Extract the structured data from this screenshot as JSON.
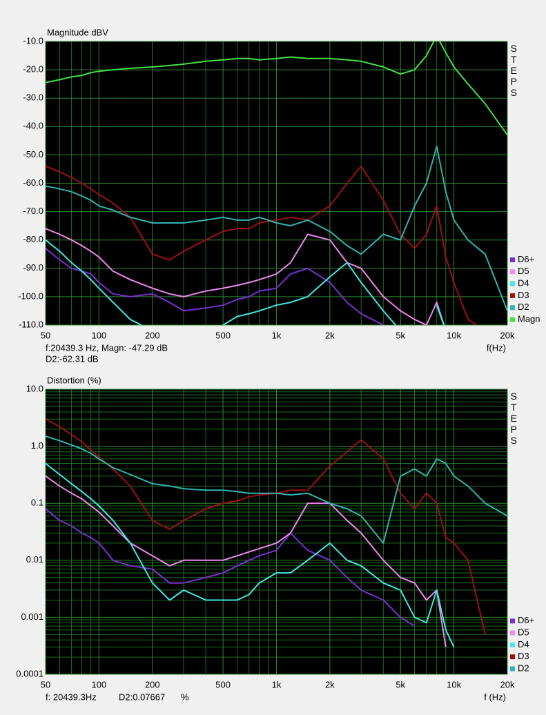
{
  "chart_data": [
    {
      "type": "line",
      "title": "Magnitude dBV",
      "side_label": "STEPS",
      "xlabel": "f(Hz)",
      "cursor": [
        "f:20439.3 Hz, Magn: -47.29 dB",
        "D2:-62.31 dB"
      ],
      "log_x": true,
      "log_y": false,
      "grid": true,
      "legend": "right",
      "xlim": [
        50,
        20000
      ],
      "xticks": [
        50,
        100,
        200,
        500,
        {
          "value": 1000,
          "label": "1k"
        },
        {
          "value": 2000,
          "label": "2k"
        },
        {
          "value": 5000,
          "label": "5k"
        },
        {
          "value": 10000,
          "label": "10k"
        },
        {
          "value": 20000,
          "label": "20k"
        }
      ],
      "xgrid": [
        60,
        70,
        80,
        90,
        300,
        400,
        600,
        700,
        800,
        900,
        3000,
        4000,
        6000,
        7000,
        8000,
        9000
      ],
      "ylim": [
        -110,
        -10
      ],
      "yticks": [
        {
          "value": -10,
          "label": "-10.0"
        },
        {
          "value": -20,
          "label": "-20.0"
        },
        {
          "value": -30,
          "label": "-30.0"
        },
        {
          "value": -40,
          "label": "-40.0"
        },
        {
          "value": -50,
          "label": "-50.0"
        },
        {
          "value": -60,
          "label": "-60.0"
        },
        {
          "value": -70,
          "label": "-70.0"
        },
        {
          "value": -80,
          "label": "-80.0"
        },
        {
          "value": -90,
          "label": "-90.0"
        },
        {
          "value": -100,
          "label": "-100.0"
        },
        {
          "value": -110,
          "label": "-110.0"
        }
      ],
      "x": [
        50,
        60,
        70,
        80,
        90,
        100,
        120,
        150,
        200,
        250,
        300,
        400,
        500,
        600,
        700,
        800,
        1000,
        1200,
        1500,
        2000,
        2500,
        3000,
        4000,
        5000,
        6000,
        7000,
        8000,
        9000,
        10000,
        12000,
        15000,
        20000
      ],
      "series": [
        {
          "name": "D6+",
          "color": "#7a2fd0",
          "values": [
            -83,
            -87,
            -90,
            -91,
            -92,
            -95,
            -99,
            -100,
            -99,
            -102,
            -105,
            -104,
            -103,
            -101,
            -100,
            -98,
            -97,
            -92,
            -90,
            -95,
            -102,
            -106,
            -110,
            -112,
            null,
            null,
            null,
            null,
            null,
            null,
            null,
            null
          ]
        },
        {
          "name": "D5",
          "color": "#f088f0",
          "values": [
            -76,
            -78,
            -80,
            -82,
            -84,
            -86,
            -91,
            -94,
            -97,
            -99,
            -100,
            -98,
            -97,
            -96,
            -95,
            -94,
            -92,
            -88,
            -78,
            -80,
            -88,
            -90,
            -100,
            -105,
            -108,
            -110,
            -102,
            -112,
            null,
            null,
            null,
            null
          ]
        },
        {
          "name": "D4",
          "color": "#40e8e8",
          "values": [
            -80,
            -84,
            -88,
            -91,
            -94,
            -97,
            -102,
            -108,
            -112,
            null,
            null,
            null,
            -110,
            -107,
            -106,
            -105,
            -103,
            -102,
            -100,
            -93,
            -88,
            -95,
            -105,
            -112,
            null,
            null,
            -103,
            -112,
            null,
            null,
            null,
            null
          ]
        },
        {
          "name": "D3",
          "color": "#a01010",
          "values": [
            -54,
            -56,
            -58,
            -60,
            -62,
            -64,
            -67,
            -72,
            -85,
            -87,
            -84,
            -80,
            -77,
            -76,
            -76,
            -74,
            -73,
            -72,
            -73,
            -68,
            -60,
            -54,
            -66,
            -78,
            -83,
            -78,
            -68,
            -86,
            -95,
            -108,
            -112,
            null
          ]
        },
        {
          "name": "D2",
          "color": "#30b4b4",
          "values": [
            -61,
            -62,
            -63,
            -64.5,
            -66,
            -68,
            -69.5,
            -72,
            -74,
            -74,
            -74,
            -73,
            -72,
            -73,
            -73,
            -72,
            -74,
            -75,
            -73,
            -77,
            -82,
            -85,
            -78,
            -80,
            -68,
            -60,
            -47,
            -63,
            -73,
            -80,
            -85,
            -105
          ]
        },
        {
          "name": "Magn",
          "color": "#44e044",
          "values": [
            -24.5,
            -23.5,
            -22.5,
            -22,
            -21,
            -20.5,
            -20,
            -19.5,
            -19,
            -18.5,
            -18,
            -17,
            -16.5,
            -16,
            -16,
            -16.5,
            -16,
            -15.5,
            -16,
            -16,
            -16.5,
            -17,
            -19,
            -21.5,
            -20,
            -15,
            -8,
            -14,
            -19,
            -25,
            -32,
            -43
          ]
        }
      ]
    },
    {
      "type": "line",
      "title": "Distortion (%)",
      "side_label": "STEPS",
      "xlabel": "f (Hz)",
      "cursor": [
        "f: 20439.3Hz",
        "D2:0.07667",
        "%"
      ],
      "log_x": true,
      "log_y": true,
      "grid": true,
      "legend": "right",
      "xlim": [
        50,
        20000
      ],
      "xticks": [
        50,
        100,
        200,
        500,
        {
          "value": 1000,
          "label": "1k"
        },
        {
          "value": 2000,
          "label": "2k"
        },
        {
          "value": 5000,
          "label": "5k"
        },
        {
          "value": 10000,
          "label": "10k"
        },
        {
          "value": 20000,
          "label": "20k"
        }
      ],
      "xgrid": [
        60,
        70,
        80,
        90,
        300,
        400,
        600,
        700,
        800,
        900,
        3000,
        4000,
        6000,
        7000,
        8000,
        9000
      ],
      "ylim": [
        0.0001,
        10
      ],
      "yticks": [
        {
          "value": 10,
          "label": "10.0"
        },
        {
          "value": 1,
          "label": "1.0"
        },
        0.1,
        0.01,
        0.001,
        0.0001
      ],
      "ygrid": [
        0.0002,
        0.0003,
        0.0004,
        0.0005,
        0.0006,
        0.0007,
        0.0008,
        0.0009,
        0.002,
        0.003,
        0.004,
        0.005,
        0.006,
        0.007,
        0.008,
        0.009,
        0.02,
        0.03,
        0.04,
        0.05,
        0.06,
        0.07,
        0.08,
        0.09,
        0.2,
        0.3,
        0.4,
        0.5,
        0.6,
        0.7,
        0.8,
        0.9,
        2,
        3,
        4,
        5,
        6,
        7,
        8,
        9
      ],
      "x": [
        50,
        60,
        70,
        80,
        90,
        100,
        120,
        150,
        200,
        250,
        300,
        400,
        500,
        600,
        700,
        800,
        1000,
        1200,
        1500,
        2000,
        2500,
        3000,
        4000,
        5000,
        6000,
        7000,
        8000,
        9000,
        10000,
        12000,
        15000,
        20000
      ],
      "series": [
        {
          "name": "D6+",
          "color": "#7a2fd0",
          "values": [
            0.08,
            0.05,
            0.04,
            0.03,
            0.025,
            0.02,
            0.01,
            0.008,
            0.007,
            0.004,
            0.004,
            0.005,
            0.006,
            0.008,
            0.01,
            0.012,
            0.015,
            0.03,
            0.015,
            0.01,
            0.005,
            0.003,
            0.002,
            0.001,
            0.0007,
            null,
            null,
            null,
            null,
            null,
            null,
            null
          ]
        },
        {
          "name": "D5",
          "color": "#f088f0",
          "values": [
            0.3,
            0.2,
            0.15,
            0.12,
            0.09,
            0.07,
            0.04,
            0.02,
            0.012,
            0.008,
            0.01,
            0.01,
            0.01,
            0.012,
            0.014,
            0.016,
            0.02,
            0.03,
            0.1,
            0.1,
            0.05,
            0.03,
            0.01,
            0.005,
            0.004,
            0.002,
            0.003,
            0.0003,
            null,
            null,
            null,
            null
          ]
        },
        {
          "name": "D4",
          "color": "#40e8e8",
          "values": [
            0.5,
            0.32,
            0.22,
            0.16,
            0.12,
            0.09,
            0.05,
            0.02,
            0.004,
            0.002,
            0.003,
            0.002,
            0.002,
            0.002,
            0.0025,
            0.004,
            0.006,
            0.006,
            0.01,
            0.02,
            0.01,
            0.008,
            0.004,
            0.003,
            0.001,
            0.0008,
            0.003,
            0.0006,
            0.0003,
            null,
            null,
            null
          ]
        },
        {
          "name": "D3",
          "color": "#a01010",
          "values": [
            3,
            2.2,
            1.6,
            1.2,
            0.85,
            0.65,
            0.4,
            0.2,
            0.05,
            0.035,
            0.05,
            0.08,
            0.1,
            0.11,
            0.13,
            0.14,
            0.15,
            0.17,
            0.17,
            0.45,
            0.8,
            1.3,
            0.6,
            0.15,
            0.08,
            0.15,
            0.1,
            0.025,
            0.02,
            0.01,
            0.0005,
            null
          ]
        },
        {
          "name": "D2",
          "color": "#30b4b4",
          "values": [
            1.5,
            1.25,
            1.05,
            0.9,
            0.75,
            0.6,
            0.42,
            0.32,
            0.22,
            0.2,
            0.18,
            0.17,
            0.17,
            0.16,
            0.15,
            0.15,
            0.15,
            0.14,
            0.15,
            0.1,
            0.08,
            0.06,
            0.02,
            0.3,
            0.4,
            0.3,
            0.6,
            0.5,
            0.3,
            0.2,
            0.1,
            0.06
          ]
        }
      ]
    }
  ]
}
